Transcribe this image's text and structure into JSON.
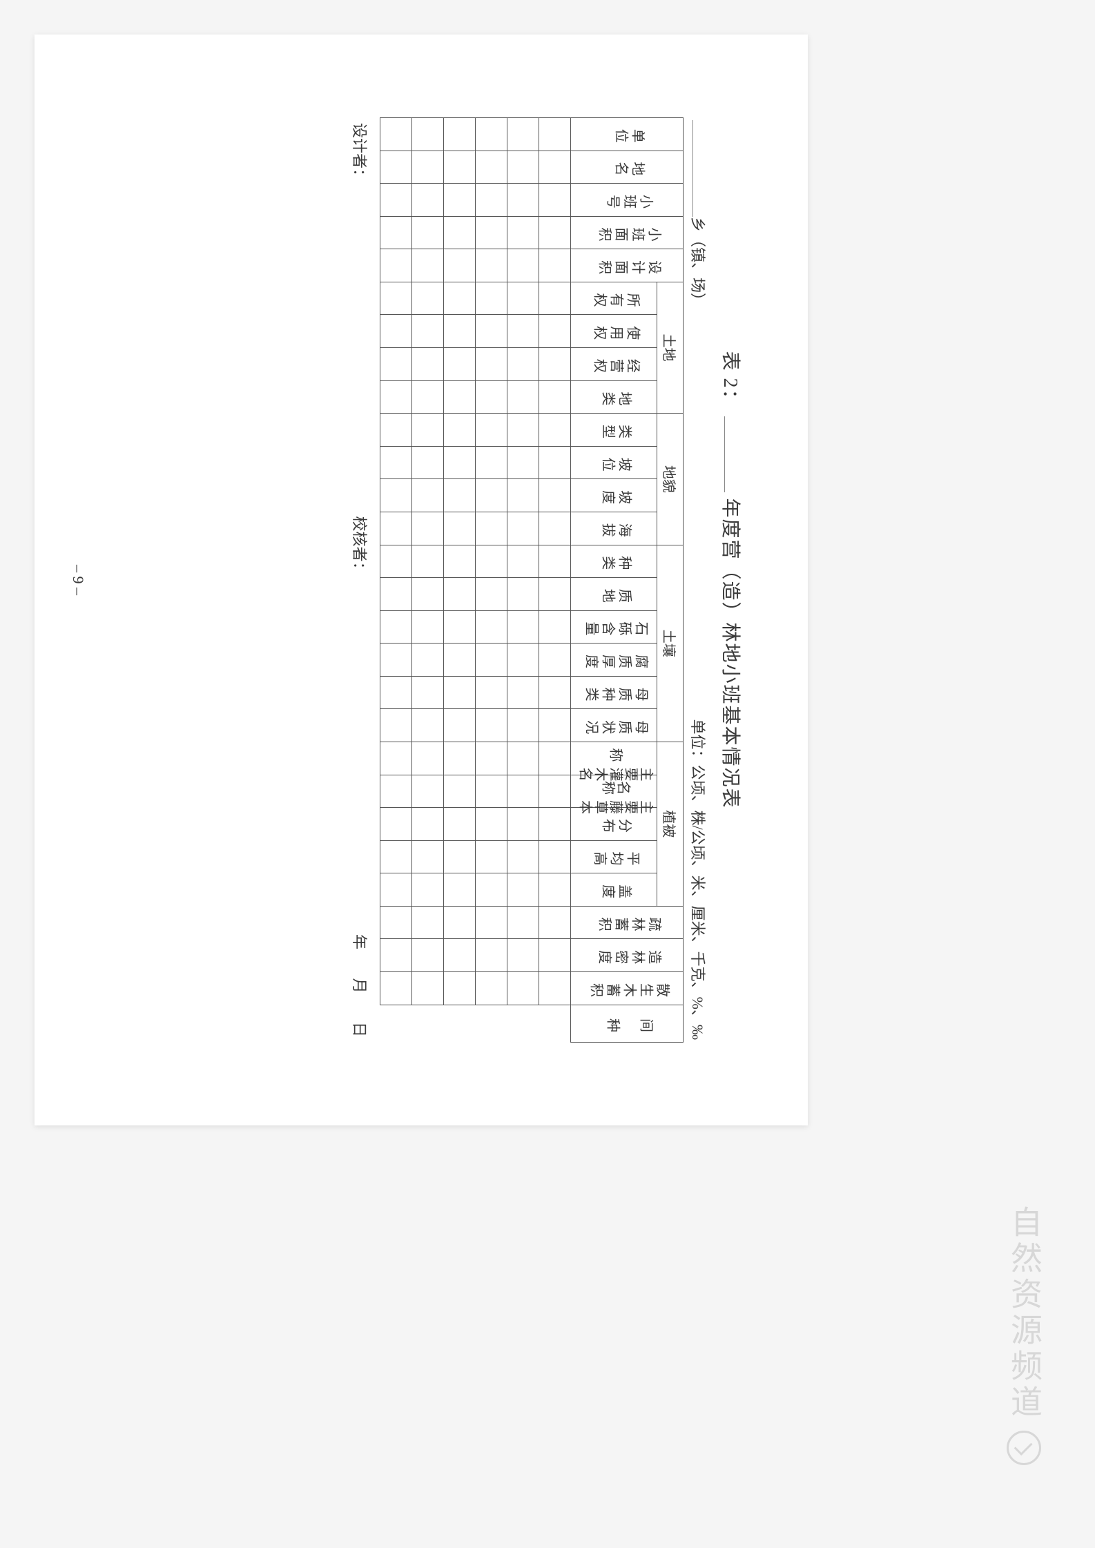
{
  "title_prefix": "表 2：",
  "title_suffix": "年度营（造）林地小班基本情况表",
  "subhead_left_suffix": "乡（镇、场）",
  "subhead_right": "单位：公顷、株/公顷、米、厘米、千克、%、‰",
  "col_danwei": "单位",
  "col_diming": "地名",
  "col_xiaobanhao": "小班号",
  "col_xiaobanmianji": "小班面积",
  "col_shejimianji": "设计面积",
  "grp_tudi": "土地",
  "col_suoyouquan": "所有权",
  "col_shiyongquan": "使用权",
  "col_jingyingquan": "经营权",
  "col_dilei": "地类",
  "grp_dimao": "地貌",
  "col_leixing": "类型",
  "col_powei": "坡位",
  "col_podu": "坡度",
  "col_haiba": "海拔",
  "grp_turang": "土壤",
  "col_zhonglei": "种类",
  "col_zhidi": "质地",
  "col_shili": "石砾含量",
  "col_fuzhihoudu": "腐质厚度",
  "col_muzhizhonglei": "母质种类",
  "col_muzhizhuangkuang": "母质状况",
  "grp_zhibei": "植被",
  "col_guanmu": "主要灌木名称",
  "col_tengcao": "主要藤草本名称",
  "col_fenbu": "分布",
  "col_pingjungao": "平均高",
  "col_gaidu": "盖度",
  "col_shulinxuji": "疏林蓄积",
  "col_zaolinmidu": "造林密度",
  "col_sanshengmuxuji": "散生木蓄积",
  "col_jianzhong": "间　种",
  "footer_designer": "设计者：",
  "footer_checker": "校核者：",
  "footer_date_y": "年",
  "footer_date_m": "月",
  "footer_date_d": "日",
  "page_number": "– 9 –",
  "watermark": "自然资源频道",
  "num_data_rows": 6,
  "num_cols": 27,
  "text_color": "#3a3a3a",
  "border_color": "#555555",
  "bg_color": "#ffffff"
}
